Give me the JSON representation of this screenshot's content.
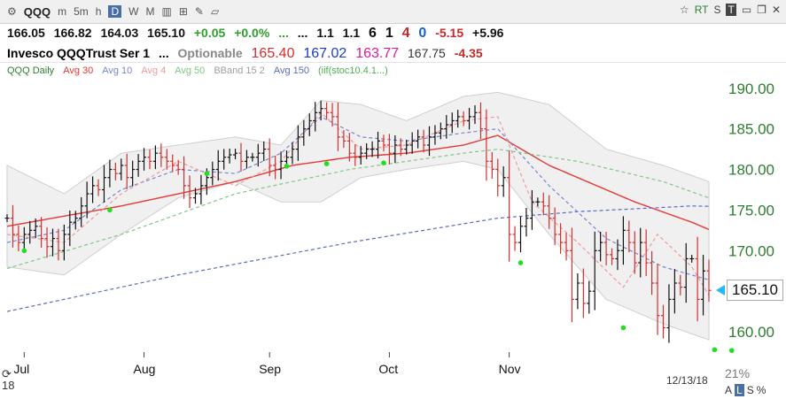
{
  "toolbar": {
    "symbol": "QQQ",
    "intervals": [
      "m",
      "5m",
      "h",
      "D",
      "W",
      "M"
    ],
    "selected": "D",
    "right_labels": [
      "RT",
      "S",
      "T"
    ]
  },
  "quote": {
    "last": "166.05",
    "high": "166.82",
    "low": "164.03",
    "close": "165.10",
    "change": "+0.05",
    "change_pct": "+0.0%",
    "dots1": "...",
    "dots2": "...",
    "v1": "1.1",
    "v2": "1.1",
    "c1": "6",
    "c2": "1",
    "c3": "4",
    "c4": "0",
    "v3": "-5.15",
    "v4": "+5.96"
  },
  "name_line": {
    "name": "Invesco QQQTrust Ser 1",
    "dots": "...",
    "tag": "Optionable",
    "v_red": "165.40",
    "v_blue": "167.02",
    "v_pink": "163.77",
    "v_gray": "167.75",
    "v_neg": "-4.35"
  },
  "legend": [
    {
      "label": "QQQ Daily",
      "color": "#2e7d32"
    },
    {
      "label": "Avg 30",
      "color": "#e53935"
    },
    {
      "label": "Avg 10",
      "color": "#7986cb"
    },
    {
      "label": "Avg 4",
      "color": "#ef9a9a"
    },
    {
      "label": "Avg 50",
      "color": "#81c784"
    },
    {
      "label": "BBand 15 2",
      "color": "#9e9e9e"
    },
    {
      "label": "Avg 150",
      "color": "#5c6bc0"
    },
    {
      "label": "(iif(stoc10.4.1...)",
      "color": "#4caf50"
    }
  ],
  "chart_data": {
    "type": "candlestick",
    "x_labels": [
      "Jul",
      "Aug",
      "Sep",
      "Oct",
      "Nov"
    ],
    "x_label_days": [
      3,
      24,
      46,
      67,
      88
    ],
    "ylim": [
      157.5,
      191.5
    ],
    "yticks": [
      "160.00",
      "165.00",
      "170.00",
      "175.00",
      "180.00",
      "185.00",
      "190.00"
    ],
    "ytick_values": [
      160,
      165,
      170,
      175,
      180,
      185,
      190
    ],
    "last_price": "165.10",
    "last_price_value": 165.1,
    "closes": [
      174.0,
      172.0,
      171.0,
      172.0,
      172.5,
      173.0,
      171.5,
      170.5,
      171.5,
      170.0,
      172.0,
      173.5,
      174.0,
      175.5,
      177.0,
      178.0,
      177.5,
      179.0,
      180.0,
      179.5,
      180.5,
      179.0,
      180.0,
      181.0,
      181.5,
      181.0,
      182.0,
      181.5,
      181.0,
      180.5,
      180.0,
      178.0,
      176.5,
      177.0,
      178.0,
      179.0,
      180.0,
      181.0,
      181.5,
      181.8,
      182.0,
      181.0,
      181.5,
      181.5,
      182.0,
      182.5,
      180.5,
      180.0,
      181.0,
      181.5,
      182.5,
      184.0,
      185.0,
      186.0,
      187.0,
      187.5,
      187.0,
      186.5,
      184.0,
      183.5,
      182.0,
      181.5,
      182.0,
      182.5,
      182.5,
      183.5,
      183.0,
      182.0,
      183.0,
      182.5,
      183.0,
      183.5,
      184.0,
      183.0,
      184.0,
      184.5,
      185.0,
      185.5,
      186.0,
      186.5,
      186.0,
      186.5,
      187.0,
      185.0,
      181.0,
      180.0,
      178.0,
      179.0,
      172.0,
      171.0,
      173.0,
      174.0,
      176.0,
      176.0,
      175.5,
      174.0,
      172.0,
      171.0,
      170.0,
      164.0,
      166.0,
      163.5,
      165.0,
      170.0,
      171.0,
      169.5,
      169.0,
      170.0,
      172.5,
      171.0,
      168.5,
      171.0,
      168.5,
      166.0,
      162.0,
      160.5,
      164.0,
      166.0,
      165.5,
      169.0,
      169.0,
      164.0,
      167.5,
      165.1
    ],
    "markers": [
      [
        3,
        170.0
      ],
      [
        18,
        175.0
      ],
      [
        35,
        179.5
      ],
      [
        49,
        180.4
      ],
      [
        56,
        180.7
      ],
      [
        66,
        180.8
      ],
      [
        90,
        168.5
      ],
      [
        108,
        160.5
      ],
      [
        124,
        157.8
      ],
      [
        127,
        157.7
      ],
      [
        140,
        159.8
      ]
    ],
    "series": [
      {
        "name": "Avg 30",
        "color": "#e53935",
        "style": "solid",
        "points": [
          [
            0,
            173.0
          ],
          [
            20,
            175.5
          ],
          [
            40,
            178.5
          ],
          [
            50,
            180.5
          ],
          [
            60,
            181.5
          ],
          [
            70,
            182.0
          ],
          [
            80,
            183.0
          ],
          [
            86,
            184.2
          ],
          [
            95,
            180.5
          ],
          [
            110,
            176.0
          ],
          [
            120,
            173.5
          ],
          [
            130,
            170.5
          ],
          [
            140,
            167.5
          ],
          [
            143,
            167.1
          ]
        ]
      },
      {
        "name": "Avg 10",
        "color": "#7986cb",
        "style": "dashed",
        "points": [
          [
            0,
            171.0
          ],
          [
            10,
            172.5
          ],
          [
            20,
            177.5
          ],
          [
            30,
            180.0
          ],
          [
            40,
            179.5
          ],
          [
            48,
            182.0
          ],
          [
            55,
            186.5
          ],
          [
            62,
            184.0
          ],
          [
            70,
            183.5
          ],
          [
            80,
            184.5
          ],
          [
            86,
            185.0
          ],
          [
            95,
            178.0
          ],
          [
            105,
            171.5
          ],
          [
            115,
            168.0
          ],
          [
            125,
            166.0
          ],
          [
            135,
            163.0
          ],
          [
            143,
            165.0
          ]
        ]
      },
      {
        "name": "Avg 4",
        "color": "#ef9a9a",
        "style": "dashed",
        "points": [
          [
            0,
            172.0
          ],
          [
            10,
            171.0
          ],
          [
            20,
            177.0
          ],
          [
            30,
            181.0
          ],
          [
            40,
            178.0
          ],
          [
            48,
            181.0
          ],
          [
            55,
            187.0
          ],
          [
            62,
            182.5
          ],
          [
            70,
            183.0
          ],
          [
            80,
            186.0
          ],
          [
            86,
            186.5
          ],
          [
            92,
            176.0
          ],
          [
            100,
            171.0
          ],
          [
            108,
            165.5
          ],
          [
            114,
            172.0
          ],
          [
            120,
            168.0
          ],
          [
            126,
            161.0
          ],
          [
            132,
            166.5
          ],
          [
            136,
            168.5
          ],
          [
            140,
            164.0
          ],
          [
            143,
            165.5
          ]
        ]
      },
      {
        "name": "Avg 50",
        "color": "#81c784",
        "style": "dashed",
        "points": [
          [
            0,
            167.8
          ],
          [
            20,
            172.0
          ],
          [
            40,
            177.0
          ],
          [
            60,
            180.0
          ],
          [
            80,
            182.0
          ],
          [
            86,
            182.5
          ],
          [
            100,
            181.0
          ],
          [
            115,
            178.5
          ],
          [
            125,
            176.0
          ],
          [
            135,
            173.0
          ],
          [
            143,
            170.0
          ]
        ]
      },
      {
        "name": "Avg 150",
        "color": "#5c6bc0",
        "style": "dashed",
        "points": [
          [
            0,
            162.5
          ],
          [
            30,
            167.0
          ],
          [
            60,
            171.0
          ],
          [
            86,
            174.0
          ],
          [
            100,
            174.8
          ],
          [
            120,
            175.5
          ],
          [
            143,
            175.2
          ]
        ]
      },
      {
        "name": "BBand upper",
        "color": "#bdbdbd",
        "style": "band-upper",
        "points": [
          [
            0,
            180.5
          ],
          [
            10,
            177.0
          ],
          [
            20,
            182.0
          ],
          [
            30,
            183.0
          ],
          [
            40,
            184.0
          ],
          [
            48,
            183.0
          ],
          [
            55,
            188.5
          ],
          [
            62,
            188.0
          ],
          [
            70,
            186.0
          ],
          [
            80,
            189.0
          ],
          [
            86,
            189.5
          ],
          [
            95,
            188.0
          ],
          [
            105,
            182.5
          ],
          [
            115,
            180.5
          ],
          [
            125,
            178.0
          ],
          [
            135,
            176.5
          ],
          [
            143,
            172.5
          ]
        ]
      },
      {
        "name": "BBand lower",
        "color": "#bdbdbd",
        "style": "band-lower",
        "points": [
          [
            0,
            168.0
          ],
          [
            10,
            167.0
          ],
          [
            20,
            172.0
          ],
          [
            30,
            176.5
          ],
          [
            40,
            178.5
          ],
          [
            48,
            176.0
          ],
          [
            55,
            176.0
          ],
          [
            62,
            179.0
          ],
          [
            70,
            180.0
          ],
          [
            80,
            181.0
          ],
          [
            86,
            180.0
          ],
          [
            95,
            172.0
          ],
          [
            105,
            164.0
          ],
          [
            115,
            161.0
          ],
          [
            125,
            158.5
          ],
          [
            135,
            159.0
          ],
          [
            143,
            158.5
          ]
        ]
      }
    ]
  },
  "footer": {
    "date": "12/13/18",
    "pct": "21%",
    "icons": [
      "A",
      "L",
      "S",
      "%"
    ],
    "left_num": "18"
  }
}
